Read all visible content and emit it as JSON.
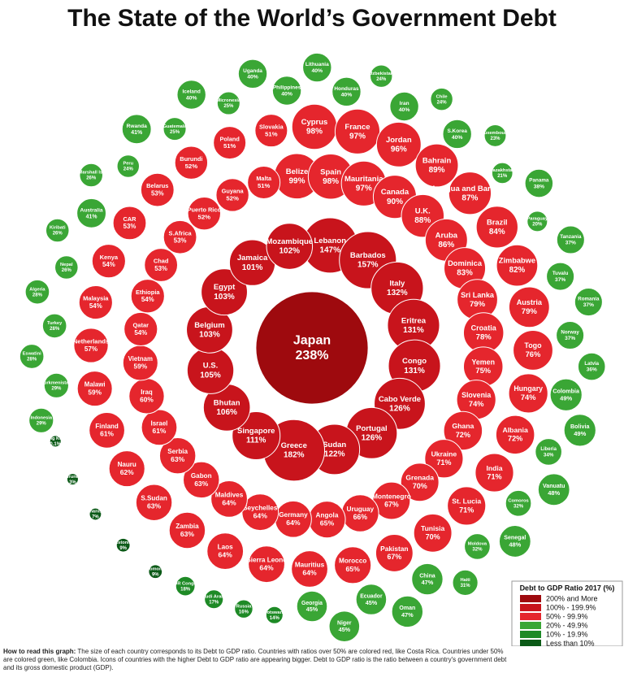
{
  "chart_data": {
    "type": "radial-bubble",
    "title": "The State of the World’s Government Debt",
    "legend_title": "Debt to GDP Ratio 2017 (%)",
    "footnote_lead": "How to read this graph:",
    "footnote": "The size of each country corresponds to its Debt to GDP ratio. Countries with ratios over 50% are colored red, like Costa Rica. Countries under 50% are colored green, like Colombia. Icons of countries with the higher Debt to GDP ratio are appearing bigger. Debt to GDP ratio is the ratio between a country's government debt and its gross domestic product (GDP).",
    "series": [
      {
        "name": "200% and More",
        "color": "#9e0a0e",
        "categories": [
          "Japan"
        ],
        "values": [
          238
        ],
        "value_labels": [
          "238%"
        ]
      },
      {
        "name": "100% - 199.9%",
        "color": "#c8141c",
        "categories": [
          "Lebanon",
          "Barbados",
          "Italy",
          "Eritrea",
          "Congo",
          "Cabo Verde",
          "Portugal",
          "Sudan",
          "Greece",
          "Singapore",
          "Bhutan",
          "U.S.",
          "Belgium",
          "Egypt",
          "Jamaica",
          "Mozambique"
        ],
        "values": [
          147,
          157,
          132,
          131,
          131,
          126,
          126,
          122,
          182,
          111,
          106,
          105,
          103,
          103,
          101,
          102
        ],
        "value_labels": [
          "147%",
          "157%",
          "132%",
          "131%",
          "131%",
          "126%",
          "126%",
          "122%",
          "182%",
          "111%",
          "106%",
          "105%",
          "103%",
          "103%",
          "101%",
          "102%"
        ]
      },
      {
        "name": "50% - 99.9%",
        "color": "#e5262d",
        "categories": [
          "Belize",
          "Cyprus",
          "Spain",
          "France",
          "Mauritania",
          "Jordan",
          "Canada",
          "Bahrain",
          "U.K.",
          "Antigua and Barbuda",
          "Aruba",
          "Brazil",
          "Dominica",
          "Zimbabwe",
          "Sri Lanka",
          "Austria",
          "Croatia",
          "Togo",
          "Yemen",
          "Hungary",
          "Slovenia",
          "Albania",
          "Ghana",
          "India",
          "Ukraine",
          "St. Lucia",
          "Grenada",
          "Tunisia",
          "Montenegro",
          "Pakistan",
          "Uruguay",
          "Morocco",
          "Angola",
          "Mauritius",
          "Germany",
          "Sierra Leone",
          "Seychelles",
          "Laos",
          "Maldives",
          "Zambia",
          "Gabon",
          "S.Sudan",
          "Serbia",
          "Nauru",
          "Israel",
          "Finland",
          "Iraq",
          "Malawi",
          "Vietnam",
          "Netherlands",
          "Qatar",
          "Malaysia",
          "Ethiopia",
          "Kenya",
          "Chad",
          "CAR",
          "S.Africa",
          "Belarus",
          "Puerto Rico",
          "Burundi",
          "Guyana",
          "Poland",
          "Malta",
          "Slovakia"
        ],
        "values": [
          99,
          98,
          98,
          97,
          97,
          96,
          90,
          89,
          88,
          87,
          86,
          84,
          83,
          82,
          79,
          79,
          78,
          76,
          75,
          74,
          74,
          72,
          72,
          71,
          71,
          71,
          70,
          70,
          67,
          67,
          66,
          65,
          65,
          64,
          64,
          64,
          64,
          64,
          64,
          63,
          63,
          63,
          63,
          62,
          61,
          61,
          60,
          59,
          59,
          57,
          54,
          54,
          54,
          54,
          53,
          53,
          53,
          53,
          52,
          52,
          52,
          51,
          51,
          51
        ],
        "value_labels": [
          "99%",
          "98%",
          "98%",
          "97%",
          "97%",
          "96%",
          "90%",
          "89%",
          "88%",
          "87%",
          "86%",
          "84%",
          "83%",
          "82%",
          "79%",
          "79%",
          "78%",
          "76%",
          "75%",
          "74%",
          "74%",
          "72%",
          "72%",
          "71%",
          "71%",
          "71%",
          "70%",
          "70%",
          "67%",
          "67%",
          "66%",
          "65%",
          "65%",
          "64%",
          "64%",
          "64%",
          "64%",
          "64%",
          "64%",
          "63%",
          "63%",
          "63%",
          "63%",
          "62%",
          "61%",
          "61%",
          "60%",
          "59%",
          "59%",
          "57%",
          "54%",
          "54%",
          "54%",
          "54%",
          "53%",
          "53%",
          "53%",
          "53%",
          "52%",
          "52%",
          "52%",
          "51%",
          "51%",
          "51%"
        ]
      },
      {
        "name": "20% - 49.9%",
        "color": "#3aa635",
        "categories": [
          "Indonesia",
          "Turkmenistan",
          "Eswatini",
          "Turkey",
          "Algeria",
          "Nepal",
          "Kiribati",
          "Australia",
          "Marshall Is.",
          "Peru",
          "Rwanda",
          "Guatemala",
          "Iceland",
          "Micronesia",
          "Uganda",
          "Philippines",
          "Lithuania",
          "Honduras",
          "Uzbekistan",
          "Iran",
          "Chile",
          "S.Korea",
          "Luxembourg",
          "Kazakhstan",
          "Panama",
          "Paraguay",
          "Tanzania",
          "Tuvalu",
          "Romania",
          "Norway",
          "Latvia",
          "Colombia",
          "Bolivia",
          "Liberia",
          "Vanuatu",
          "Comoros",
          "Senegal",
          "Moldova",
          "Haiti",
          "China",
          "Oman",
          "Ecuador",
          "Niger",
          "Georgia"
        ],
        "values": [
          29,
          29,
          28,
          28,
          28,
          26,
          26,
          41,
          26,
          24,
          41,
          25,
          40,
          25,
          40,
          40,
          40,
          40,
          24,
          40,
          24,
          40,
          23,
          21,
          38,
          20,
          37,
          37,
          37,
          37,
          36,
          49,
          49,
          34,
          48,
          32,
          48,
          32,
          31,
          47,
          47,
          45,
          45,
          45
        ],
        "value_labels": [
          "29%",
          "29%",
          "28%",
          "28%",
          "28%",
          "26%",
          "26%",
          "41%",
          "26%",
          "24%",
          "41%",
          "25%",
          "40%",
          "25%",
          "40%",
          "40%",
          "40%",
          "40%",
          "24%",
          "40%",
          "24%",
          "40%",
          "23%",
          "21%",
          "38%",
          "20%",
          "37%",
          "37%",
          "37%",
          "37%",
          "36%",
          "49%",
          "49%",
          "34%",
          "48%",
          "32%",
          "48%",
          "32%",
          "31%",
          "47%",
          "47%",
          "45%",
          "45%",
          "45%"
        ]
      },
      {
        "name": "10% - 19.9%",
        "color": "#1e8a26",
        "categories": [
          "Botswana",
          "Russia",
          "Saudi Arabia",
          "DR Congo"
        ],
        "values": [
          14,
          16,
          17,
          18
        ],
        "value_labels": [
          "14%",
          "16%",
          "17%",
          "18%"
        ]
      },
      {
        "name": "Less than 10%",
        "color": "#0b5a17",
        "categories": [
          "Solomon Is.",
          "Estonia",
          "Afghanistan",
          "Brunei",
          "Hong Kong"
        ],
        "values": [
          9,
          9,
          7,
          3,
          0.1
        ],
        "value_labels": [
          "9%",
          "9%",
          "7%",
          "3%",
          "0.1%"
        ]
      }
    ]
  }
}
